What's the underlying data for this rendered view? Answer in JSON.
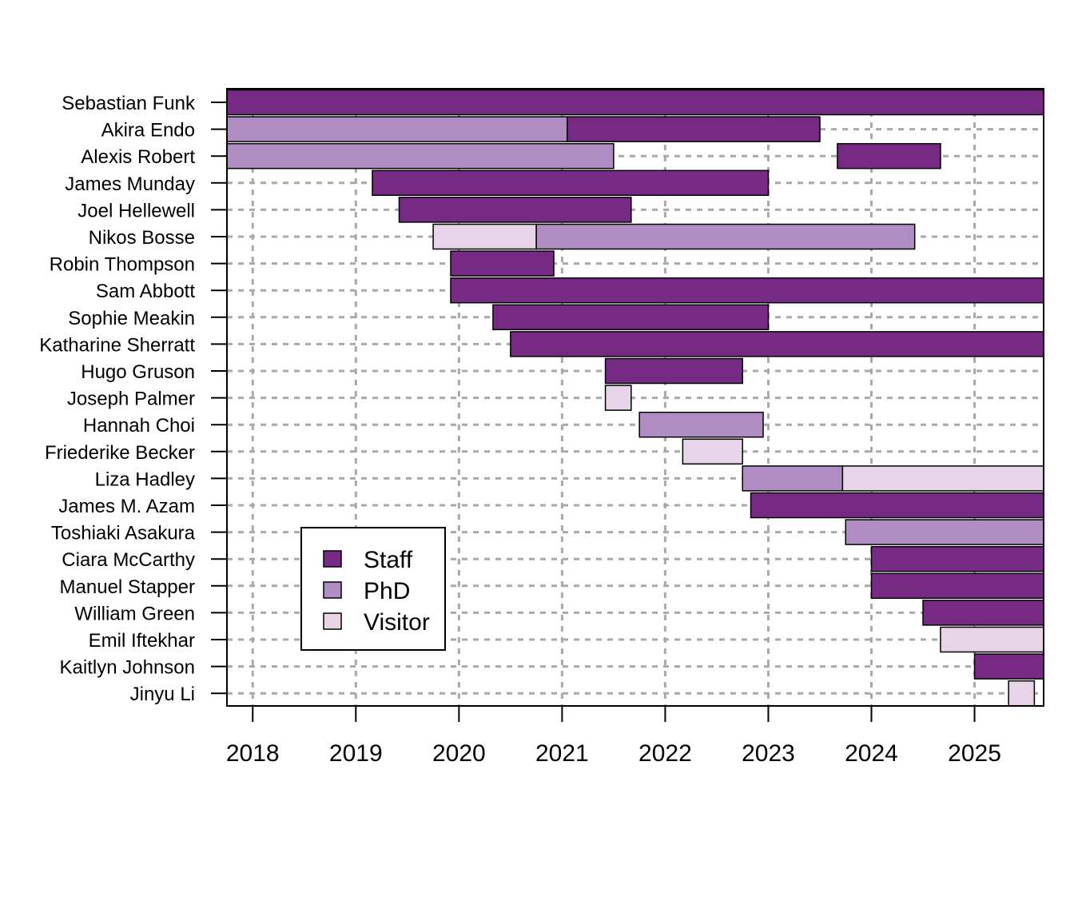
{
  "chart_data": {
    "type": "timeline",
    "xlim": [
      2017.75,
      2025.67
    ],
    "x_ticks": [
      "2018",
      "2019",
      "2020",
      "2021",
      "2022",
      "2023",
      "2024",
      "2025"
    ],
    "x_tick_values": [
      2018,
      2019,
      2020,
      2021,
      2022,
      2023,
      2024,
      2025
    ],
    "grid": true,
    "legend_position": "bottom-left",
    "categories": {
      "Staff": "#762a83",
      "PhD": "#af8dc3",
      "Visitor": "#e7d4e8"
    },
    "legend": [
      "Staff",
      "PhD",
      "Visitor"
    ],
    "people": [
      {
        "name": "Sebastian Funk",
        "segments": [
          {
            "role": "Staff",
            "start": 2017.75,
            "end": 2025.67
          }
        ]
      },
      {
        "name": "Akira Endo",
        "segments": [
          {
            "role": "PhD",
            "start": 2017.75,
            "end": 2021.05
          },
          {
            "role": "Staff",
            "start": 2021.05,
            "end": 2023.5
          }
        ]
      },
      {
        "name": "Alexis Robert",
        "segments": [
          {
            "role": "PhD",
            "start": 2017.75,
            "end": 2021.5
          },
          {
            "role": "Staff",
            "start": 2023.67,
            "end": 2024.67
          }
        ]
      },
      {
        "name": "James Munday",
        "segments": [
          {
            "role": "Staff",
            "start": 2019.16,
            "end": 2023.0
          }
        ]
      },
      {
        "name": "Joel Hellewell",
        "segments": [
          {
            "role": "Staff",
            "start": 2019.42,
            "end": 2021.67
          }
        ]
      },
      {
        "name": "Nikos Bosse",
        "segments": [
          {
            "role": "Visitor",
            "start": 2019.75,
            "end": 2020.75
          },
          {
            "role": "PhD",
            "start": 2020.75,
            "end": 2024.42
          }
        ]
      },
      {
        "name": "Robin Thompson",
        "segments": [
          {
            "role": "Staff",
            "start": 2019.92,
            "end": 2020.92
          }
        ]
      },
      {
        "name": "Sam Abbott",
        "segments": [
          {
            "role": "Staff",
            "start": 2019.92,
            "end": 2025.67
          }
        ]
      },
      {
        "name": "Sophie Meakin",
        "segments": [
          {
            "role": "Staff",
            "start": 2020.33,
            "end": 2023.0
          }
        ]
      },
      {
        "name": "Katharine Sherratt",
        "segments": [
          {
            "role": "Staff",
            "start": 2020.5,
            "end": 2025.67
          }
        ]
      },
      {
        "name": "Hugo Gruson",
        "segments": [
          {
            "role": "Staff",
            "start": 2021.42,
            "end": 2022.75
          }
        ]
      },
      {
        "name": "Joseph Palmer",
        "segments": [
          {
            "role": "Visitor",
            "start": 2021.42,
            "end": 2021.67
          }
        ]
      },
      {
        "name": "Hannah Choi",
        "segments": [
          {
            "role": "PhD",
            "start": 2021.75,
            "end": 2022.95
          }
        ]
      },
      {
        "name": "Friederike Becker",
        "segments": [
          {
            "role": "Visitor",
            "start": 2022.17,
            "end": 2022.75
          }
        ]
      },
      {
        "name": "Liza Hadley",
        "segments": [
          {
            "role": "PhD",
            "start": 2022.75,
            "end": 2023.72
          },
          {
            "role": "Visitor",
            "start": 2023.72,
            "end": 2025.67
          }
        ]
      },
      {
        "name": "James M. Azam",
        "segments": [
          {
            "role": "Staff",
            "start": 2022.83,
            "end": 2025.67
          }
        ]
      },
      {
        "name": "Toshiaki Asakura",
        "segments": [
          {
            "role": "PhD",
            "start": 2023.75,
            "end": 2025.67
          }
        ]
      },
      {
        "name": "Ciara McCarthy",
        "segments": [
          {
            "role": "Staff",
            "start": 2024.0,
            "end": 2025.67
          }
        ]
      },
      {
        "name": "Manuel Stapper",
        "segments": [
          {
            "role": "Staff",
            "start": 2024.0,
            "end": 2025.67
          }
        ]
      },
      {
        "name": "William Green",
        "segments": [
          {
            "role": "Staff",
            "start": 2024.5,
            "end": 2025.67
          }
        ]
      },
      {
        "name": "Emil Iftekhar",
        "segments": [
          {
            "role": "Visitor",
            "start": 2024.67,
            "end": 2025.67
          }
        ]
      },
      {
        "name": "Kaitlyn Johnson",
        "segments": [
          {
            "role": "Staff",
            "start": 2025.0,
            "end": 2025.67
          }
        ]
      },
      {
        "name": "Jinyu Li",
        "segments": [
          {
            "role": "Visitor",
            "start": 2025.33,
            "end": 2025.58
          }
        ]
      }
    ]
  }
}
